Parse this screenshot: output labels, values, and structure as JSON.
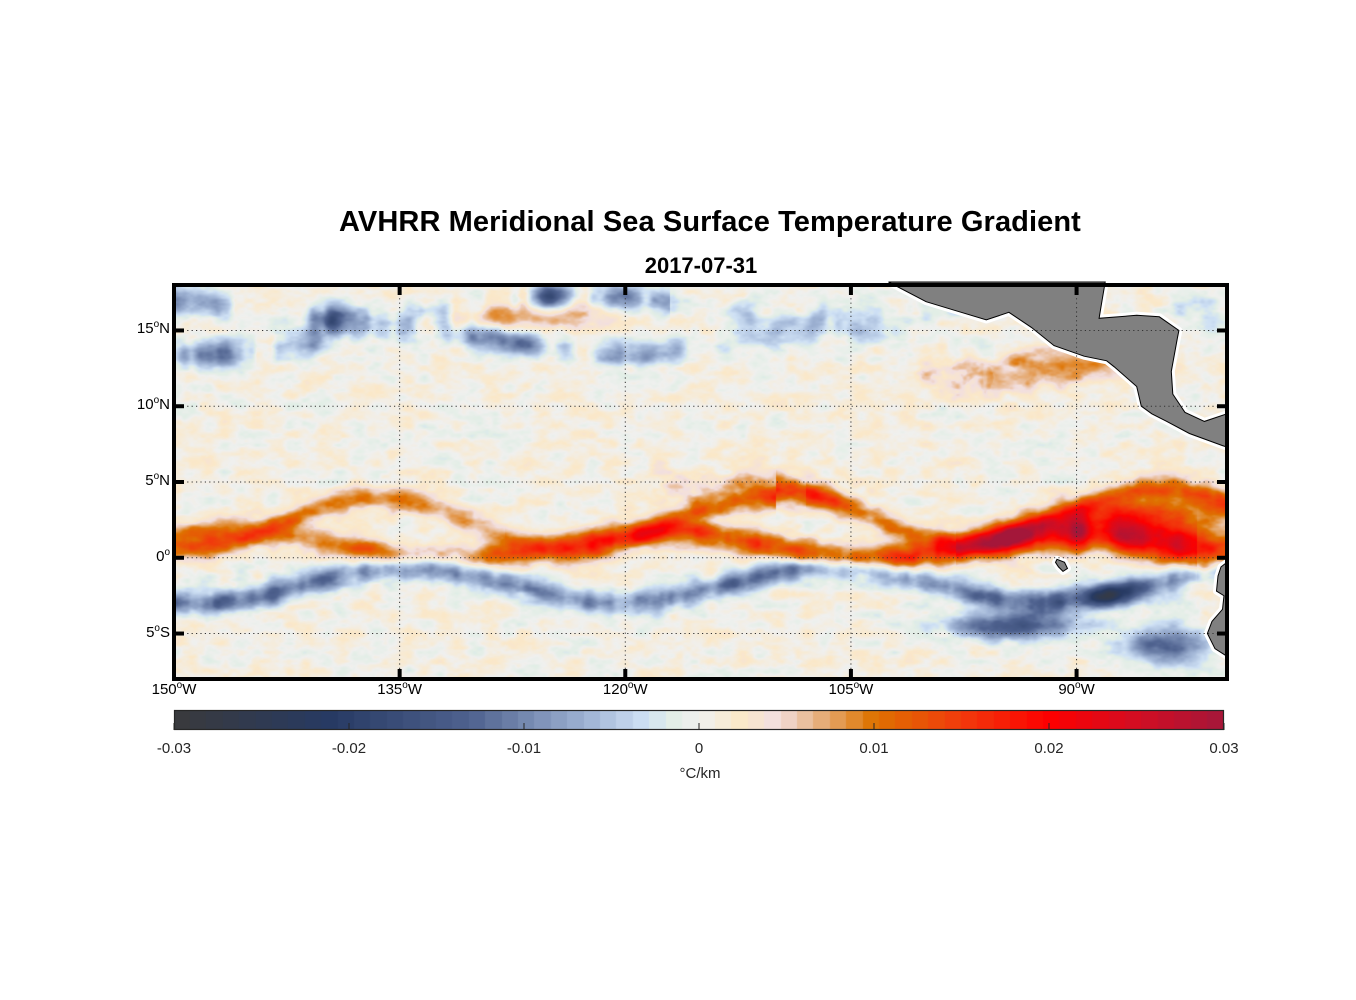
{
  "title": "AVHRR Meridional Sea Surface Temperature Gradient",
  "subtitle": "2017-07-31",
  "chart_data": {
    "type": "heatmap",
    "title": "AVHRR Meridional Sea Surface Temperature Gradient",
    "subtitle": "2017-07-31",
    "xlabel": "",
    "ylabel": "",
    "x_range_lon": [
      -150,
      -80
    ],
    "y_range_lat": [
      -8,
      18
    ],
    "grid": true,
    "grid_style": "dotted",
    "x_ticks": [
      {
        "value": -150,
        "label": "150",
        "suffix": "W"
      },
      {
        "value": -135,
        "label": "135",
        "suffix": "W"
      },
      {
        "value": -120,
        "label": "120",
        "suffix": "W"
      },
      {
        "value": -105,
        "label": "105",
        "suffix": "W"
      },
      {
        "value": -90,
        "label": "90",
        "suffix": "W"
      }
    ],
    "y_ticks": [
      {
        "value": 15,
        "label": "15",
        "suffix": "N"
      },
      {
        "value": 10,
        "label": "10",
        "suffix": "N"
      },
      {
        "value": 5,
        "label": "5",
        "suffix": "N"
      },
      {
        "value": 0,
        "label": "0",
        "suffix": ""
      },
      {
        "value": -5,
        "label": "5",
        "suffix": "S"
      }
    ],
    "colorbar": {
      "placement": "bottom",
      "range": [
        -0.03,
        0.03
      ],
      "ticks": [
        -0.03,
        -0.02,
        -0.01,
        0,
        0.01,
        0.02,
        0.03
      ],
      "tick_labels": [
        "-0.03",
        "-0.02",
        "-0.01",
        "0",
        "0.01",
        "0.02",
        "0.03"
      ],
      "unit": "°C/km",
      "colormap_stops": [
        {
          "v": -0.03,
          "color": "#3a3a3c"
        },
        {
          "v": -0.021,
          "color": "#273a63"
        },
        {
          "v": -0.013,
          "color": "#4f628f"
        },
        {
          "v": -0.006,
          "color": "#a4b8d8"
        },
        {
          "v": -0.003,
          "color": "#cfe1f5"
        },
        {
          "v": -0.0015,
          "color": "#e2eee6"
        },
        {
          "v": 0.0,
          "color": "#f0f0ef"
        },
        {
          "v": 0.0025,
          "color": "#fbe8c8"
        },
        {
          "v": 0.0045,
          "color": "#f2dfe0"
        },
        {
          "v": 0.007,
          "color": "#e6ae7a"
        },
        {
          "v": 0.01,
          "color": "#de7300"
        },
        {
          "v": 0.015,
          "color": "#f13a0c"
        },
        {
          "v": 0.02,
          "color": "#fd0000"
        },
        {
          "v": 0.025,
          "color": "#d30d22"
        },
        {
          "v": 0.03,
          "color": "#a4173a"
        }
      ]
    },
    "land_color": "#808080",
    "land_regions": [
      "Central America",
      "South America (Ecuador/Peru coast)",
      "Galapagos"
    ],
    "features": [
      {
        "name": "equatorial-front-north-band",
        "sign": "positive",
        "approx_peak": 0.025,
        "lat_range": [
          -1.5,
          4
        ],
        "lon_range": [
          -150,
          -80
        ]
      },
      {
        "name": "equatorial-front-south-band",
        "sign": "negative",
        "approx_peak": -0.02,
        "lat_range": [
          -5,
          0
        ],
        "lon_range": [
          -150,
          -80
        ]
      },
      {
        "name": "northern-negative-eddies",
        "sign": "negative",
        "approx_peak": -0.022,
        "lat_range": [
          11,
          18
        ],
        "lon_range": [
          -150,
          -118
        ]
      },
      {
        "name": "coastal-warm-patches",
        "sign": "positive",
        "approx_peak": 0.012,
        "lat_range": [
          5,
          16
        ],
        "lon_range": [
          -105,
          -84
        ]
      }
    ]
  },
  "colorbar_unit": "°C/km"
}
